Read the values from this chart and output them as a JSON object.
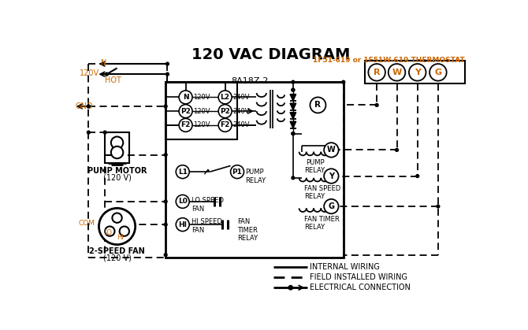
{
  "title": "120 VAC DIAGRAM",
  "thermostat_label": "1F51-619 or 1F51W-619 THERMOSTAT",
  "control_box_label": "8A18Z-2",
  "orange_color": "#cc6600",
  "black_color": "#000000",
  "bg_color": "#ffffff",
  "title_fontsize": 14,
  "small_fontsize": 6.5,
  "med_fontsize": 7.5
}
